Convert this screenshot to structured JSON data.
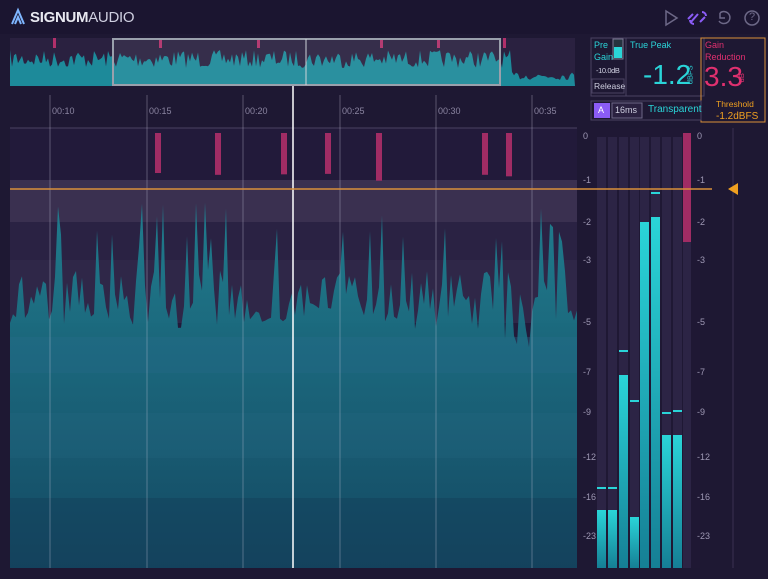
{
  "header": {
    "brand_bold": "SIGNUM",
    "brand_light": "AUDIO",
    "help_icon": "?"
  },
  "timeline": {
    "labels": [
      "00:10",
      "00:15",
      "00:20",
      "00:25",
      "00:30",
      "00:35"
    ]
  },
  "controls": {
    "pre_gain": {
      "lines": [
        "Pre",
        "Gain"
      ],
      "value": "-10.0dB"
    },
    "release": "Release",
    "true_peak": {
      "label": "True Peak",
      "value": "-1.2",
      "unit": "dBFS"
    },
    "gain_reduction": {
      "lines": [
        "Gain",
        "Reduction"
      ],
      "value": "3.3",
      "unit": "dB"
    },
    "mode_button": "A",
    "release_time": "16ms",
    "character": "Transparent",
    "threshold": {
      "label": "Threshold",
      "value": "-1.2dBFS"
    }
  },
  "meter": {
    "scale": [
      "0",
      "-1",
      "-2",
      "-3",
      "-5",
      "-7",
      "-9",
      "-12",
      "-16",
      "-23"
    ]
  }
}
